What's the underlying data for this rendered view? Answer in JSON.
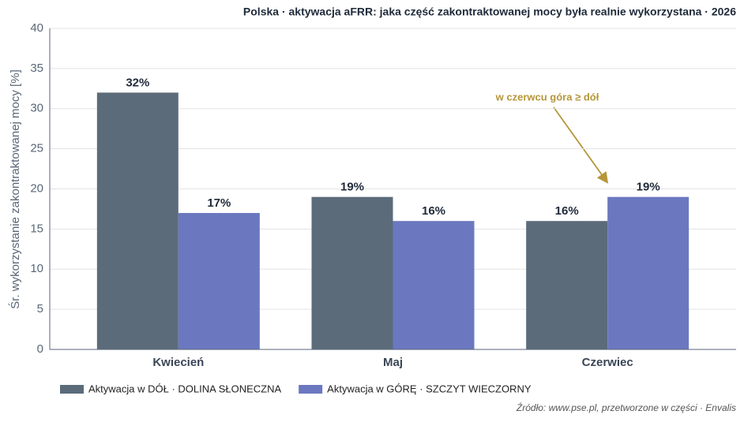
{
  "chart_data": {
    "type": "bar",
    "title": "Polska · aktywacja aFRR: jaka część zakontraktowanej mocy była realnie wykorzystana · 2026",
    "y_label": "Śr. wykorzystanie zakontraktowanej mocy [%]",
    "categories": [
      "Kwiecień",
      "Maj",
      "Czerwiec"
    ],
    "series": [
      {
        "name": "Aktywacja w DÓŁ · DOLINA SŁONECZNA",
        "color": "#5b6b7a",
        "values": [
          32,
          19,
          16
        ],
        "value_labels": [
          "32%",
          "19%",
          "16%"
        ]
      },
      {
        "name": "Aktywacja w GÓRĘ · SZCZYT WIECZORNY",
        "color": "#6b78c0",
        "values": [
          17,
          16,
          19
        ],
        "value_labels": [
          "17%",
          "16%",
          "19%"
        ]
      }
    ],
    "ylim": [
      0,
      40
    ],
    "yticks": [
      0,
      5,
      10,
      15,
      20,
      25,
      30,
      35,
      40
    ],
    "grid": true,
    "annotation": "w czerwcu góra ≥ dół",
    "source": "Źródło: www.pse.pl, przetworzone w części · Envalis"
  }
}
